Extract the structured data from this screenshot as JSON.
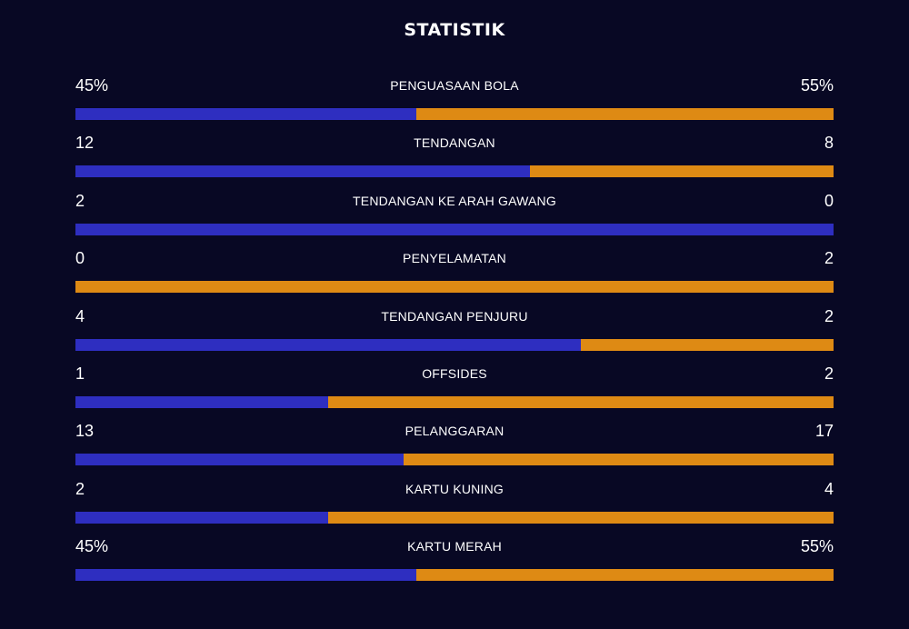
{
  "title": "STATISTIK",
  "colors": {
    "background": "#080824",
    "home": "#2e2ec0",
    "away": "#de8a14"
  },
  "stats": [
    {
      "label": "PENGUASAAN BOLA",
      "left": "45%",
      "right": "55%",
      "home_share": 0.45
    },
    {
      "label": "TENDANGAN",
      "left": "12",
      "right": "8",
      "home_share": 0.6
    },
    {
      "label": "TENDANGAN KE ARAH GAWANG",
      "left": "2",
      "right": "0",
      "home_share": 1.0
    },
    {
      "label": "PENYELAMATAN",
      "left": "0",
      "right": "2",
      "home_share": 0.0
    },
    {
      "label": "TENDANGAN PENJURU",
      "left": "4",
      "right": "2",
      "home_share": 0.6667
    },
    {
      "label": "OFFSIDES",
      "left": "1",
      "right": "2",
      "home_share": 0.3333
    },
    {
      "label": "PELANGGARAN",
      "left": "13",
      "right": "17",
      "home_share": 0.4333
    },
    {
      "label": "KARTU KUNING",
      "left": "2",
      "right": "4",
      "home_share": 0.3333
    },
    {
      "label": "KARTU MERAH",
      "left": "45%",
      "right": "55%",
      "home_share": 0.45
    }
  ]
}
